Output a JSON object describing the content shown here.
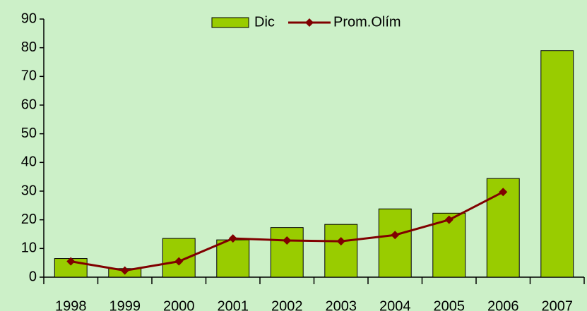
{
  "chart_data": {
    "type": "bar_line",
    "categories": [
      "1998",
      "1999",
      "2000",
      "2001",
      "2002",
      "2003",
      "2004",
      "2005",
      "2006",
      "2007"
    ],
    "series": [
      {
        "name": "Dic",
        "type": "bar",
        "color": "#99cc00",
        "values": [
          6.5,
          3,
          13.5,
          13,
          17.3,
          18.4,
          23.8,
          22.3,
          34.4,
          79
        ]
      },
      {
        "name": "Prom.Olím",
        "type": "line",
        "color": "#800000",
        "values": [
          5.5,
          2.3,
          5.5,
          13.5,
          12.8,
          12.5,
          14.7,
          20,
          29.7,
          null
        ]
      }
    ],
    "ylim": [
      0,
      90
    ],
    "yticks": [
      0,
      10,
      20,
      30,
      40,
      50,
      60,
      70,
      80,
      90
    ],
    "legend": "top"
  }
}
